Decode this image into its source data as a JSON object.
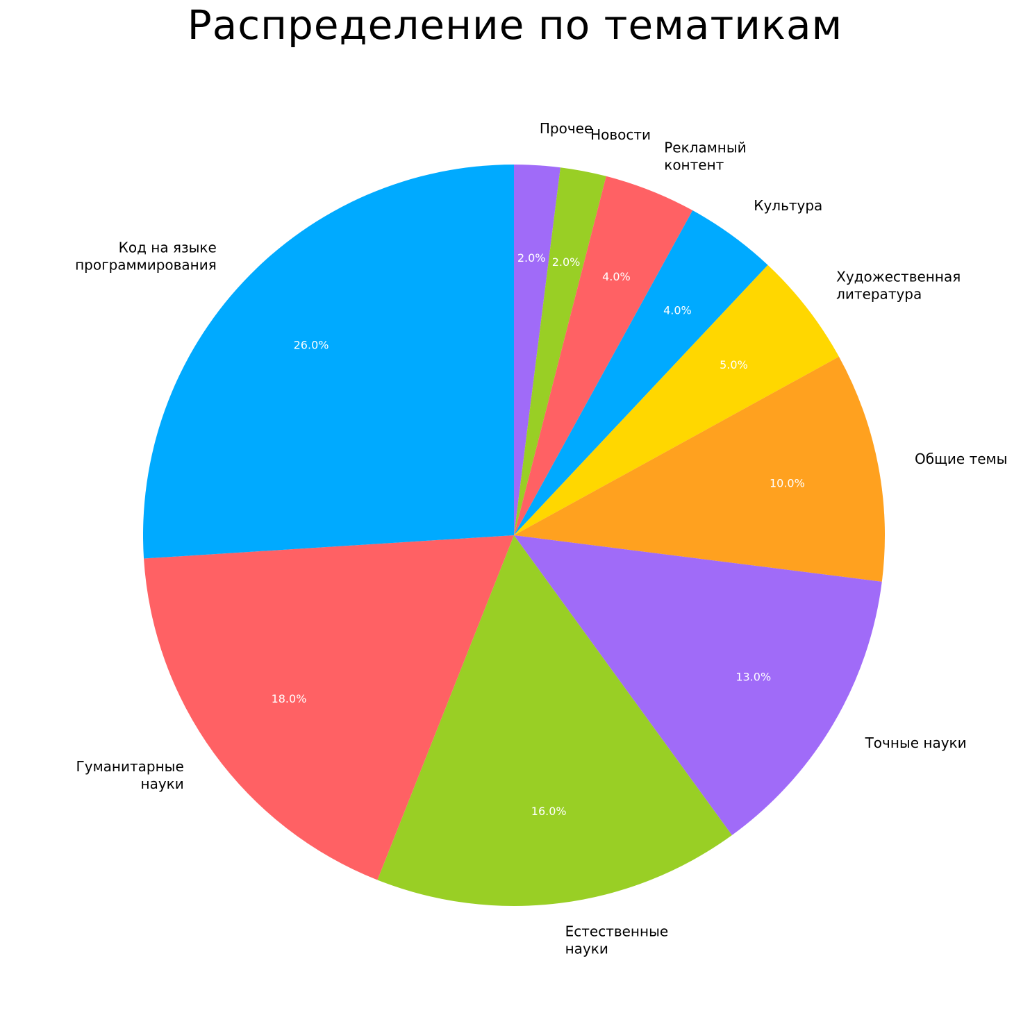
{
  "chart_data": {
    "type": "pie",
    "title": "Распределение по тематикам",
    "start_angle_deg": 90,
    "direction": "clockwise",
    "slices": [
      {
        "label": "Прочее",
        "value": 2.0,
        "pct_text": "2.0%",
        "color": "#A06BF8"
      },
      {
        "label": "Новости",
        "value": 2.0,
        "pct_text": "2.0%",
        "color": "#99CF25"
      },
      {
        "label": "Рекламный контент",
        "value": 4.0,
        "pct_text": "4.0%",
        "color": "#FF6164"
      },
      {
        "label": "Культура",
        "value": 4.0,
        "pct_text": "4.0%",
        "color": "#00AAFF"
      },
      {
        "label": "Художественная литература",
        "value": 5.0,
        "pct_text": "5.0%",
        "color": "#FFD700"
      },
      {
        "label": "Общие темы",
        "value": 10.0,
        "pct_text": "10.0%",
        "color": "#FFA11F"
      },
      {
        "label": "Точные науки",
        "value": 13.0,
        "pct_text": "13.0%",
        "color": "#A06BF8"
      },
      {
        "label": "Естественные науки",
        "value": 16.0,
        "pct_text": "16.0%",
        "color": "#99CF25"
      },
      {
        "label": "Гуманитарные науки",
        "value": 18.0,
        "pct_text": "18.0%",
        "color": "#FF6164"
      },
      {
        "label": "Код на языке программирования",
        "value": 26.0,
        "pct_text": "26.0%",
        "color": "#00AAFF"
      }
    ]
  }
}
